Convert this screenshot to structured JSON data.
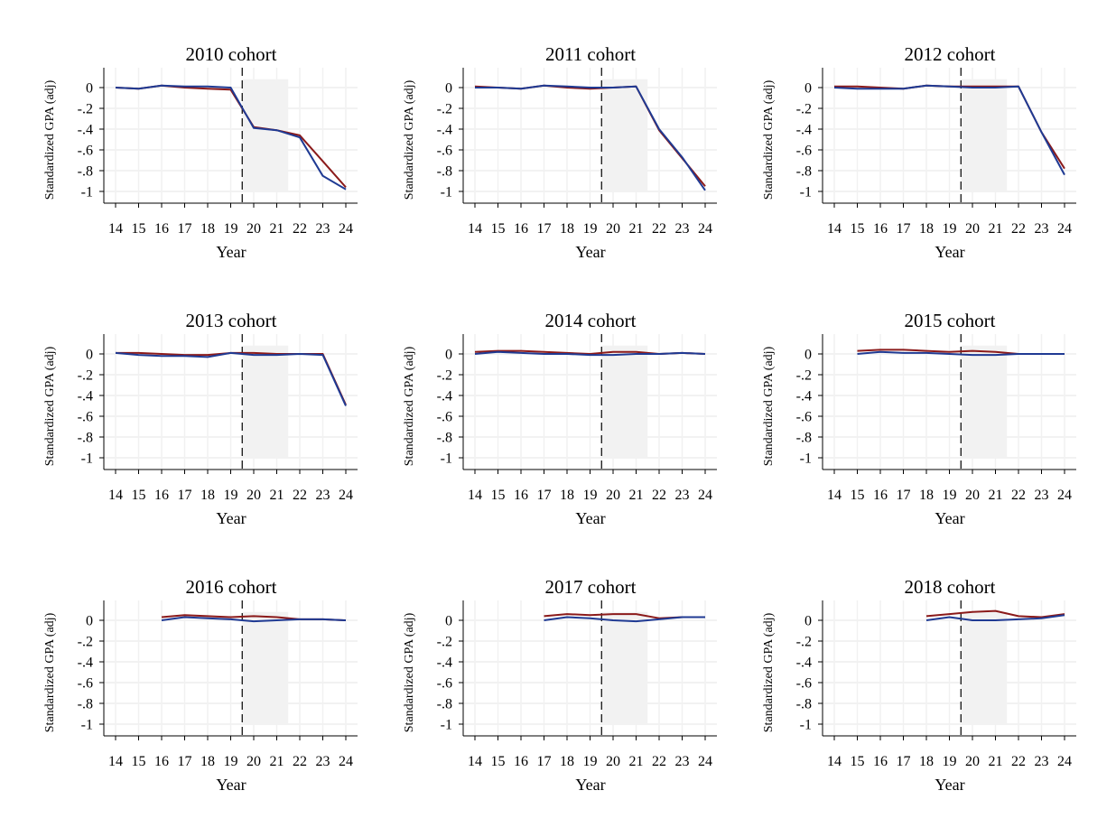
{
  "chart_data": {
    "type": "line",
    "layout": "3x3 small multiples",
    "ylabel": "Standardized GPA (adj)",
    "xlabel": "Year",
    "x": [
      14,
      15,
      16,
      17,
      18,
      19,
      20,
      21,
      22,
      23,
      24
    ],
    "x_tick_labels": [
      "14",
      "15",
      "16",
      "17",
      "18",
      "19",
      "20",
      "21",
      "22",
      "23",
      "24"
    ],
    "yticks": [
      0,
      -0.2,
      -0.4,
      -0.6,
      -0.8,
      -1
    ],
    "ytick_labels": [
      "0",
      "-.2",
      "-.4",
      "-.6",
      "-.8",
      "-1"
    ],
    "ylim": [
      -1.1,
      0.2
    ],
    "reference_line_x": 19.5,
    "shaded_region": {
      "x": [
        19.5,
        21.5
      ],
      "y": [
        -1,
        0.08
      ]
    },
    "grid": true,
    "series_colors": {
      "red": "#8b1a1a",
      "blue": "#1f3a93"
    },
    "panels": [
      {
        "title": "2010 cohort",
        "red": [
          0,
          -0.01,
          0.02,
          0,
          -0.01,
          -0.02,
          -0.38,
          -0.41,
          -0.46,
          -0.71,
          -0.96
        ],
        "blue": [
          0,
          -0.01,
          0.02,
          0.01,
          0.01,
          0,
          -0.39,
          -0.41,
          -0.48,
          -0.85,
          -0.98
        ]
      },
      {
        "title": "2011 cohort",
        "red": [
          0.01,
          0,
          -0.01,
          0.02,
          0,
          -0.01,
          0,
          0.01,
          -0.41,
          -0.68,
          -0.95
        ],
        "blue": [
          0,
          0,
          -0.01,
          0.02,
          0.01,
          0,
          0,
          0.01,
          -0.4,
          -0.67,
          -0.99
        ]
      },
      {
        "title": "2012 cohort",
        "red": [
          0.01,
          0.01,
          0,
          -0.01,
          0.02,
          0.01,
          0.01,
          0.01,
          0.01,
          -0.43,
          -0.78
        ],
        "blue": [
          0,
          -0.01,
          -0.01,
          -0.01,
          0.02,
          0.01,
          0,
          0,
          0.01,
          -0.43,
          -0.84
        ]
      },
      {
        "title": "2013 cohort",
        "red": [
          0.01,
          0.01,
          0,
          -0.01,
          -0.01,
          0.01,
          0.01,
          0,
          0,
          0,
          -0.49
        ],
        "blue": [
          0.01,
          -0.01,
          -0.02,
          -0.02,
          -0.03,
          0.01,
          -0.01,
          -0.01,
          0,
          -0.01,
          -0.5
        ]
      },
      {
        "title": "2014 cohort",
        "red": [
          0.02,
          0.03,
          0.03,
          0.02,
          0.01,
          0,
          0.02,
          0.02,
          0,
          0.01,
          0
        ],
        "blue": [
          0,
          0.02,
          0.01,
          0,
          0,
          -0.01,
          -0.01,
          0,
          0,
          0.01,
          0
        ]
      },
      {
        "title": "2015 cohort",
        "red": [
          null,
          0.03,
          0.04,
          0.04,
          0.03,
          0.02,
          0.03,
          0.02,
          0,
          0,
          0
        ],
        "blue": [
          null,
          0,
          0.02,
          0.01,
          0.01,
          0,
          -0.01,
          -0.01,
          0,
          0,
          0
        ]
      },
      {
        "title": "2016 cohort",
        "red": [
          null,
          null,
          0.03,
          0.05,
          0.04,
          0.03,
          0.04,
          0.03,
          0.01,
          0.01,
          0
        ],
        "blue": [
          null,
          null,
          0,
          0.03,
          0.02,
          0.01,
          -0.01,
          0,
          0.01,
          0.01,
          0
        ]
      },
      {
        "title": "2017 cohort",
        "red": [
          null,
          null,
          null,
          0.04,
          0.06,
          0.05,
          0.06,
          0.06,
          0.02,
          0.03,
          0.03
        ],
        "blue": [
          null,
          null,
          null,
          0,
          0.03,
          0.02,
          0,
          -0.01,
          0.01,
          0.03,
          0.03
        ]
      },
      {
        "title": "2018 cohort",
        "red": [
          null,
          null,
          null,
          null,
          0.04,
          0.06,
          0.08,
          0.09,
          0.04,
          0.03,
          0.06
        ],
        "blue": [
          null,
          null,
          null,
          null,
          0,
          0.03,
          0,
          0,
          0.01,
          0.02,
          0.05
        ]
      }
    ]
  }
}
